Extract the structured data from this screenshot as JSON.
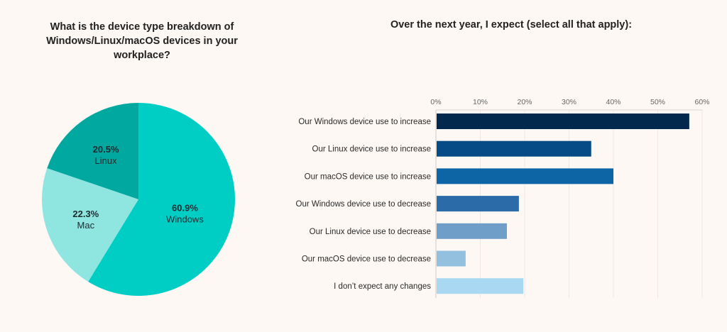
{
  "chart_data": [
    {
      "type": "pie",
      "title": "What is the device type breakdown of Windows/Linux/macOS devices in your workplace?",
      "slices": [
        {
          "label": "Windows",
          "value": 60.9,
          "display": "60.9%",
          "color": "#00cec5"
        },
        {
          "label": "Mac",
          "value": 22.3,
          "display": "22.3%",
          "color": "#8fe6e1"
        },
        {
          "label": "Linux",
          "value": 20.5,
          "display": "20.5%",
          "color": "#00a8a0"
        }
      ]
    },
    {
      "type": "bar",
      "orientation": "horizontal",
      "title": "Over the next year, I expect (select all that apply):",
      "xlim": [
        0,
        60
      ],
      "x_ticks": [
        "0%",
        "10%",
        "20%",
        "30%",
        "40%",
        "50%",
        "60%"
      ],
      "x_tick_values": [
        0,
        10,
        20,
        30,
        40,
        50,
        60
      ],
      "grid": true,
      "categories": [
        "Our Windows device use to increase",
        "Our Linux device use to increase",
        "Our macOS device use to increase",
        "Our Windows device use to decrease",
        "Our Linux device use to decrease",
        "Our macOS device use to decrease",
        "I don’t expect any changes"
      ],
      "values": [
        57.1,
        35.0,
        40.0,
        18.7,
        16.0,
        6.7,
        19.7
      ],
      "colors": [
        "#03284d",
        "#064b85",
        "#0d65a6",
        "#2a6ba8",
        "#6f9fc8",
        "#94c0e0",
        "#a9d9f2"
      ]
    }
  ]
}
